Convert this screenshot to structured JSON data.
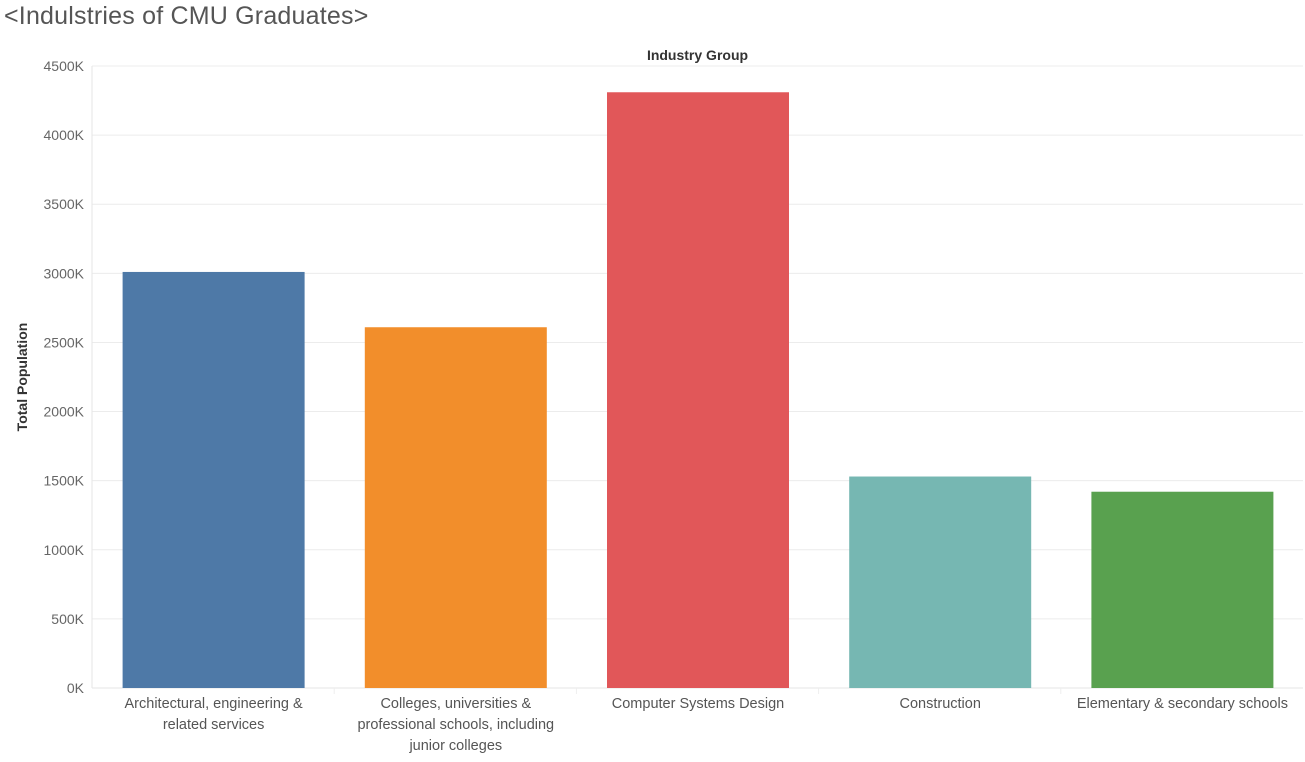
{
  "title": "<Indulstries of CMU Graduates>",
  "chart_data": {
    "type": "bar",
    "header": "Industry Group",
    "ylabel": "Total Population",
    "ylim": [
      0,
      4500000
    ],
    "yticks": [
      0,
      500000,
      1000000,
      1500000,
      2000000,
      2500000,
      3000000,
      3500000,
      4000000,
      4500000
    ],
    "ytick_labels": [
      "0K",
      "500K",
      "1000K",
      "1500K",
      "2000K",
      "2500K",
      "3000K",
      "3500K",
      "4000K",
      "4500K"
    ],
    "grid": true,
    "categories": [
      [
        "Architectural, engineering &",
        "related services"
      ],
      [
        "Colleges, universities &",
        "professional schools, including",
        "junior colleges"
      ],
      [
        "Computer Systems Design"
      ],
      [
        "Construction"
      ],
      [
        "Elementary & secondary schools"
      ]
    ],
    "values": [
      3010000,
      2610000,
      4310000,
      1530000,
      1420000
    ],
    "colors": [
      "#4e79a7",
      "#f28e2b",
      "#e15759",
      "#76b7b2",
      "#59a14f"
    ]
  }
}
